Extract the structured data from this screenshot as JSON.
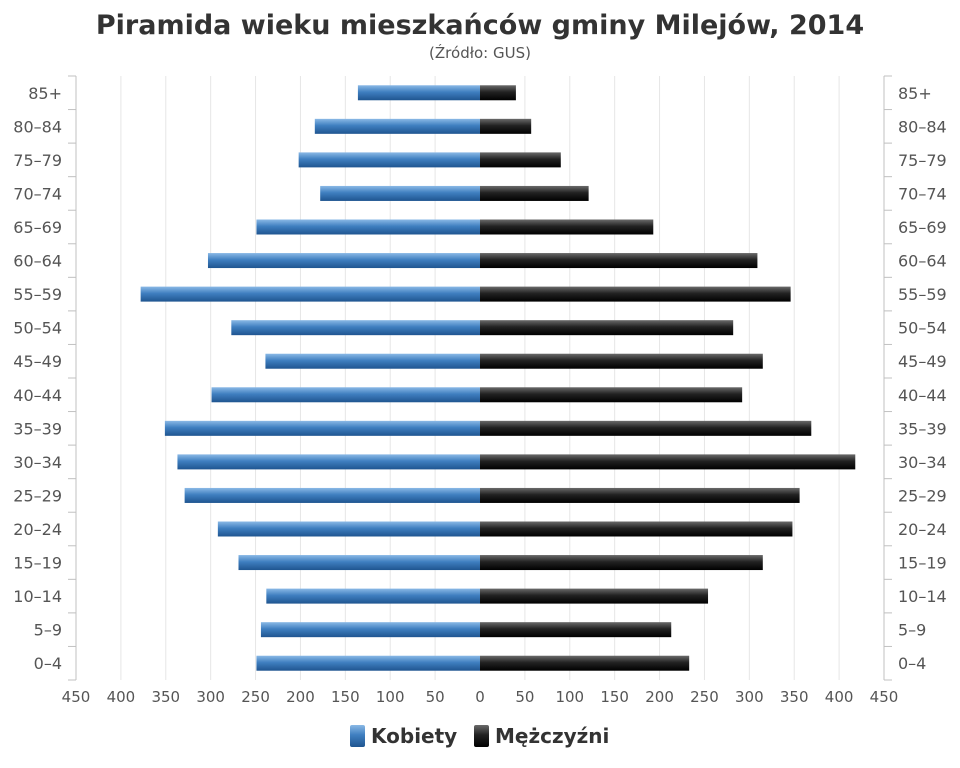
{
  "chart_data": {
    "type": "bar",
    "orientation": "horizontal-diverging",
    "title": "Piramida wieku mieszkańców gminy Milejów, 2014",
    "subtitle": "(Źródło: GUS)",
    "categories": [
      "0–4",
      "5–9",
      "10–14",
      "15–19",
      "20–24",
      "25–29",
      "30–34",
      "35–39",
      "40–44",
      "45–49",
      "50–54",
      "55–59",
      "60–64",
      "65–69",
      "70–74",
      "75–79",
      "80–84",
      "85+"
    ],
    "series": [
      {
        "name": "Kobiety",
        "side": "left",
        "color": "#3a78b5",
        "values": [
          249,
          244,
          238,
          269,
          292,
          329,
          337,
          351,
          299,
          239,
          277,
          378,
          303,
          249,
          178,
          202,
          184,
          136
        ]
      },
      {
        "name": "Mężczyźni",
        "side": "right",
        "color": "#1b1b1b",
        "values": [
          233,
          213,
          254,
          315,
          348,
          356,
          418,
          369,
          292,
          315,
          282,
          346,
          309,
          193,
          121,
          90,
          57,
          40
        ]
      }
    ],
    "x_ticks": [
      "450",
      "400",
      "350",
      "300",
      "250",
      "200",
      "150",
      "100",
      "50",
      "0",
      "50",
      "100",
      "150",
      "200",
      "250",
      "300",
      "350",
      "400",
      "450"
    ],
    "xlim": [
      -450,
      450
    ],
    "grid": true,
    "legend_position": "bottom"
  },
  "colors": {
    "female_light": "#6fa8dc",
    "female_dark": "#2a5f96",
    "male_light": "#555555",
    "male_dark": "#000000",
    "grid": "#e6e6e6",
    "axis": "#c0c0c0"
  }
}
